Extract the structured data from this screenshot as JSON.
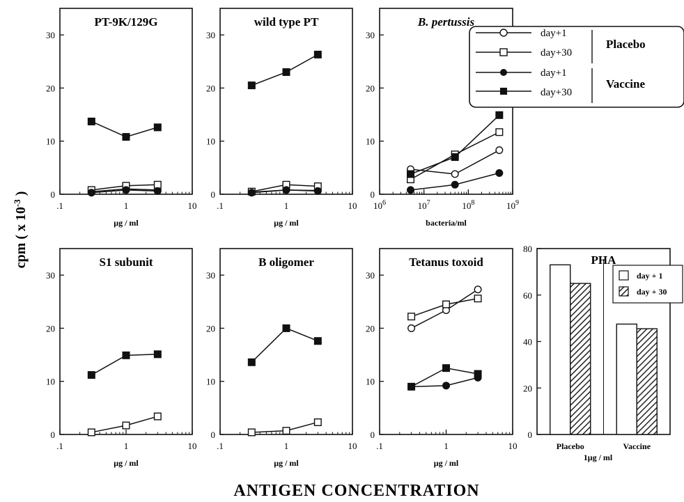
{
  "figure": {
    "y_axis_label": "cpm ( x 10",
    "y_axis_exp": "-3",
    "y_axis_close": " )",
    "bottom_title": "ANTIGEN CONCENTRATION"
  },
  "legend": {
    "day1": "day+1",
    "day30": "day+30",
    "placebo": "Placebo",
    "vaccine": "Vaccine"
  },
  "chart_data": [
    {
      "type": "line",
      "title": "PT-9K/129G",
      "xlabel": "μg  /  ml",
      "xscale": "log",
      "xlim": [
        0.1,
        10
      ],
      "ylim": [
        0,
        35
      ],
      "x": [
        0.3,
        1,
        3
      ],
      "series": [
        {
          "name": "Placebo day+1",
          "marker": "open-circle",
          "values": [
            0.5,
            1.0,
            0.8
          ]
        },
        {
          "name": "Placebo day+30",
          "marker": "open-square",
          "values": [
            0.8,
            1.6,
            1.8
          ]
        },
        {
          "name": "Vaccine day+1",
          "marker": "filled-circle",
          "values": [
            0.3,
            0.8,
            0.6
          ]
        },
        {
          "name": "Vaccine day+30",
          "marker": "filled-square",
          "values": [
            13.7,
            10.8,
            12.6
          ]
        }
      ]
    },
    {
      "type": "line",
      "title": "wild type PT",
      "xlabel": "μg  /  ml",
      "xscale": "log",
      "xlim": [
        0.1,
        10
      ],
      "ylim": [
        0,
        35
      ],
      "x": [
        0.3,
        1,
        3
      ],
      "series": [
        {
          "name": "Placebo day+1",
          "marker": "open-circle",
          "values": [
            0.4,
            0.8,
            0.7
          ]
        },
        {
          "name": "Placebo day+30",
          "marker": "open-square",
          "values": [
            0.5,
            1.8,
            1.5
          ]
        },
        {
          "name": "Vaccine day+1",
          "marker": "filled-circle",
          "values": [
            0.3,
            0.8,
            0.6
          ]
        },
        {
          "name": "Vaccine day+30",
          "marker": "filled-square",
          "values": [
            20.5,
            23.0,
            26.3
          ]
        }
      ]
    },
    {
      "type": "line",
      "title": "B.  pertussis",
      "xlabel": "bacteria/ml",
      "xscale": "log",
      "xlim": [
        1000000,
        1000000000
      ],
      "ylim": [
        0,
        35
      ],
      "xtick_mantissa": "10",
      "xtick_exponents": [
        "6",
        "7",
        "8",
        "9"
      ],
      "x": [
        5000000,
        50000000,
        500000000
      ],
      "series": [
        {
          "name": "Placebo day+1",
          "marker": "open-circle",
          "values": [
            4.7,
            3.8,
            8.3
          ]
        },
        {
          "name": "Placebo day+30",
          "marker": "open-square",
          "values": [
            2.8,
            7.5,
            11.7
          ]
        },
        {
          "name": "Vaccine day+1",
          "marker": "filled-circle",
          "values": [
            0.8,
            1.8,
            4.0
          ]
        },
        {
          "name": "Vaccine day+30",
          "marker": "filled-square",
          "values": [
            3.8,
            7.0,
            14.9
          ]
        }
      ]
    },
    {
      "type": "line",
      "title": "S1  subunit",
      "xlabel": "μg  /  ml",
      "xscale": "log",
      "xlim": [
        0.1,
        10
      ],
      "ylim": [
        0,
        35
      ],
      "x": [
        0.3,
        1,
        3
      ],
      "series": [
        {
          "name": "Placebo day+30",
          "marker": "open-square",
          "values": [
            0.4,
            1.7,
            3.4
          ]
        },
        {
          "name": "Vaccine day+30",
          "marker": "filled-square",
          "values": [
            11.2,
            14.9,
            15.1
          ]
        }
      ]
    },
    {
      "type": "line",
      "title": "B  oligomer",
      "xlabel": "μg  /  ml",
      "xscale": "log",
      "xlim": [
        0.1,
        10
      ],
      "ylim": [
        0,
        35
      ],
      "x": [
        0.3,
        1,
        3
      ],
      "series": [
        {
          "name": "Placebo day+30",
          "marker": "open-square",
          "values": [
            0.4,
            0.7,
            2.3
          ]
        },
        {
          "name": "Vaccine day+30",
          "marker": "filled-square",
          "values": [
            13.6,
            20.0,
            17.6
          ]
        }
      ]
    },
    {
      "type": "line",
      "title": "Tetanus  toxoid",
      "xlabel": "μg  /  ml",
      "xscale": "log",
      "xlim": [
        0.1,
        10
      ],
      "ylim": [
        0,
        35
      ],
      "x": [
        0.3,
        1,
        3
      ],
      "series": [
        {
          "name": "Placebo day+1",
          "marker": "open-circle",
          "values": [
            20.0,
            23.4,
            27.3
          ]
        },
        {
          "name": "Placebo day+30",
          "marker": "open-square",
          "values": [
            22.2,
            24.5,
            25.6
          ]
        },
        {
          "name": "Vaccine day+1",
          "marker": "filled-circle",
          "values": [
            9.0,
            9.2,
            10.7
          ]
        },
        {
          "name": "Vaccine day+30",
          "marker": "filled-square",
          "values": [
            9.0,
            12.5,
            11.4
          ]
        }
      ]
    },
    {
      "type": "bar",
      "title": "PHA",
      "xlabel": "1μg  /  ml",
      "categories": [
        "Placebo",
        "Vaccine"
      ],
      "ylim": [
        0,
        80
      ],
      "yticks": [
        0,
        20,
        40,
        60,
        80
      ],
      "series": [
        {
          "name": "day + 1",
          "fill": "open",
          "values": [
            73,
            47.5
          ]
        },
        {
          "name": "day + 30",
          "fill": "hatched",
          "values": [
            65,
            45.5
          ]
        }
      ]
    }
  ]
}
